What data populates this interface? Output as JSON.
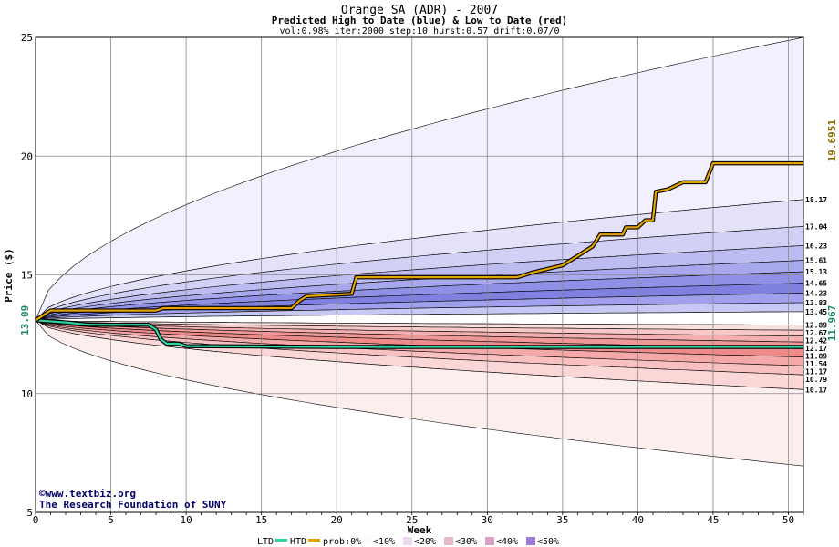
{
  "chart_data": {
    "type": "area",
    "title": "Orange SA (ADR) - 2007",
    "subtitle": "Predicted High to Date (blue) &  Low to Date (red)",
    "params": "vol:0.98% iter:2000 step:10 hurst:0.57 drift:0.07/0",
    "xlabel": "Week",
    "ylabel": "Price ($)",
    "xlim": [
      0,
      51
    ],
    "ylim": [
      5,
      25
    ],
    "x_ticks": [
      "0",
      "5",
      "10",
      "15",
      "20",
      "25",
      "30",
      "35",
      "40",
      "45",
      "50"
    ],
    "y_ticks": [
      "5",
      "10",
      "15",
      "20",
      "25"
    ],
    "start_price": 13.09,
    "start_price_label": "13.09",
    "grid": true,
    "high_quantiles": [
      {
        "label": "18.17",
        "value": 18.17
      },
      {
        "label": "17.04",
        "value": 17.04
      },
      {
        "label": "16.23",
        "value": 16.23
      },
      {
        "label": "15.61",
        "value": 15.61
      },
      {
        "label": "15.13",
        "value": 15.13
      },
      {
        "label": "14.65",
        "value": 14.65
      },
      {
        "label": "14.23",
        "value": 14.23
      },
      {
        "label": "13.83",
        "value": 13.83
      },
      {
        "label": "13.45",
        "value": 13.45
      }
    ],
    "low_quantiles": [
      {
        "label": "12.89",
        "value": 12.89
      },
      {
        "label": "12.67",
        "value": 12.67
      },
      {
        "label": "12.42",
        "value": 12.42
      },
      {
        "label": "12.17",
        "value": 12.17
      },
      {
        "label": "11.89",
        "value": 11.89
      },
      {
        "label": "11.54",
        "value": 11.54
      },
      {
        "label": "11.17",
        "value": 11.17
      },
      {
        "label": "10.79",
        "value": 10.79
      },
      {
        "label": "10.17",
        "value": 10.17
      }
    ],
    "envelope_high_end": 25.0,
    "envelope_low_end": 6.95,
    "htd_series": {
      "name": "HTD",
      "final_label": "19.6951",
      "points": [
        [
          0,
          13.09
        ],
        [
          1,
          13.5
        ],
        [
          8,
          13.5
        ],
        [
          8.5,
          13.6
        ],
        [
          17,
          13.6
        ],
        [
          17.5,
          13.9
        ],
        [
          18,
          14.1
        ],
        [
          21,
          14.2
        ],
        [
          21.3,
          14.9
        ],
        [
          32,
          14.9
        ],
        [
          33,
          15.1
        ],
        [
          35,
          15.4
        ],
        [
          36,
          15.8
        ],
        [
          37,
          16.2
        ],
        [
          37.5,
          16.7
        ],
        [
          39,
          16.7
        ],
        [
          39.2,
          17.0
        ],
        [
          40,
          17.0
        ],
        [
          40.5,
          17.3
        ],
        [
          41,
          17.3
        ],
        [
          41.2,
          18.5
        ],
        [
          42,
          18.6
        ],
        [
          43,
          18.9
        ],
        [
          44.5,
          18.9
        ],
        [
          45,
          19.7
        ],
        [
          51,
          19.7
        ]
      ]
    },
    "ltd_series": {
      "name": "LTD",
      "final_label": "11.967",
      "points": [
        [
          0,
          13.09
        ],
        [
          2,
          13.0
        ],
        [
          3.5,
          12.9
        ],
        [
          7.5,
          12.9
        ],
        [
          8,
          12.7
        ],
        [
          8.3,
          12.3
        ],
        [
          8.7,
          12.1
        ],
        [
          9.5,
          12.1
        ],
        [
          10,
          12.0
        ],
        [
          20,
          11.967
        ],
        [
          51,
          11.967
        ]
      ]
    },
    "legend": {
      "ltd": "LTD",
      "htd": "HTD",
      "prob_prefix": "prob:0%",
      "bins": [
        "<10%",
        "<20%",
        "<30%",
        "<40%",
        "<50%"
      ]
    },
    "colors": {
      "htd_line": "#e3a400",
      "ltd_line": "#2bd6a2",
      "high_label": "#8b6a00",
      "low_label": "#1e8c6a",
      "credit": "#000066"
    }
  },
  "credit": {
    "site": "©www.textbiz.org",
    "org": "The Research Foundation of SUNY"
  }
}
